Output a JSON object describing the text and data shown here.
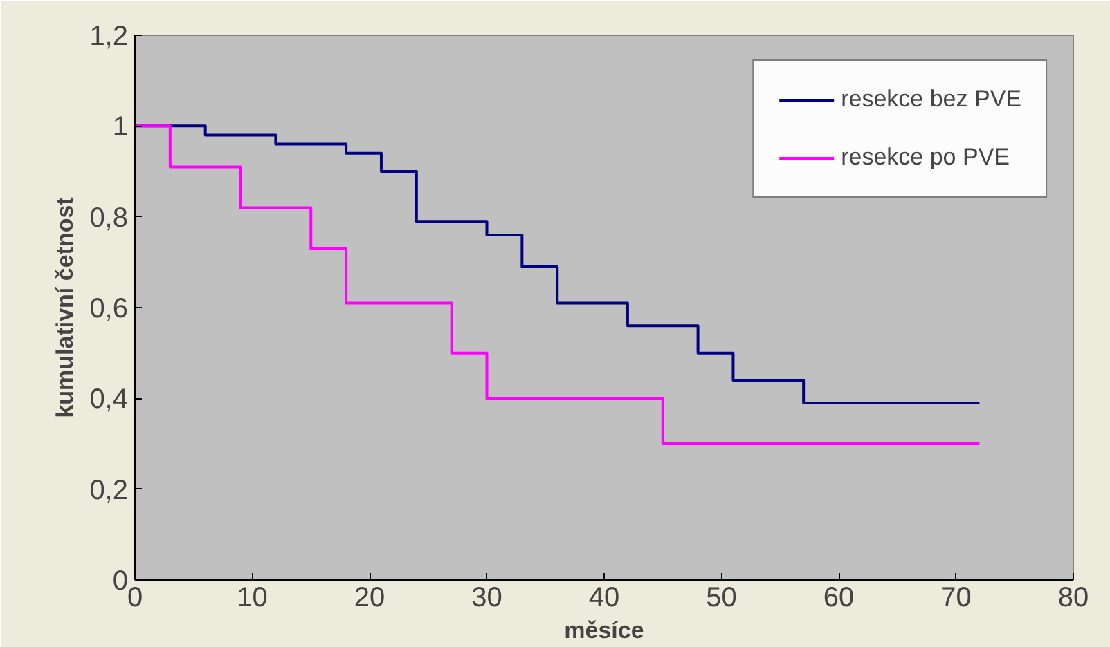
{
  "chart_data": {
    "type": "step",
    "xlabel": "měsíce",
    "ylabel": "kumulativní četnost",
    "x": [
      0,
      3,
      6,
      9,
      12,
      15,
      18,
      21,
      24,
      27,
      30,
      33,
      36,
      39,
      42,
      45,
      48,
      51,
      54,
      57,
      60,
      63,
      66,
      69,
      72
    ],
    "series": [
      {
        "name": "resekce bez PVE",
        "color": "#000080",
        "values": [
          1,
          1,
          0.98,
          0.98,
          0.96,
          0.96,
          0.94,
          0.9,
          0.79,
          0.79,
          0.76,
          0.69,
          0.61,
          0.61,
          0.56,
          0.56,
          0.5,
          0.44,
          0.44,
          0.39,
          0.39,
          0.39,
          0.39,
          0.39,
          0.39
        ]
      },
      {
        "name": "resekce po PVE",
        "color": "#ff00ff",
        "values": [
          1,
          0.91,
          0.91,
          0.82,
          0.82,
          0.73,
          0.61,
          0.61,
          0.61,
          0.5,
          0.4,
          0.4,
          0.4,
          0.4,
          0.4,
          0.3,
          0.3,
          0.3,
          0.3,
          0.3,
          0.3,
          0.3,
          0.3,
          0.3,
          0.3
        ]
      }
    ],
    "xlim": [
      0,
      80
    ],
    "xticks": [
      0,
      10,
      20,
      30,
      40,
      50,
      60,
      70,
      80
    ],
    "ylim": [
      0,
      1.2
    ],
    "yticks": [
      0,
      {
        "value": 0.2,
        "label": "0,2"
      },
      {
        "value": 0.4,
        "label": "0,4"
      },
      {
        "value": 0.6,
        "label": "0,6"
      },
      {
        "value": 0.8,
        "label": "0,8"
      },
      1,
      {
        "value": 1.2,
        "label": "1,2"
      }
    ],
    "grid": false,
    "legend": "top right",
    "marker": "none",
    "line_style": "solid"
  }
}
